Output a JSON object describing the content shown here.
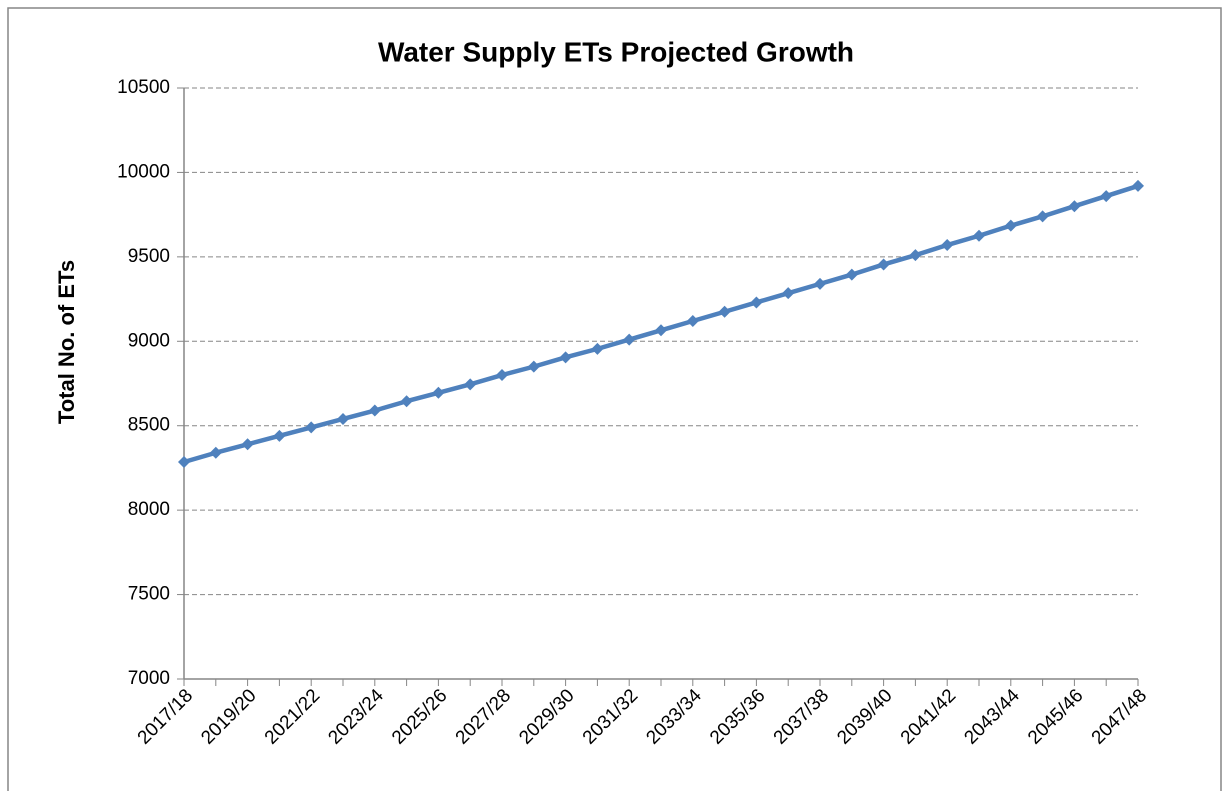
{
  "chart_data": {
    "type": "line",
    "title": "Water Supply ETs Projected Growth",
    "y_label": "Total No. of ETs",
    "categories": [
      "2017/18",
      null,
      "2019/20",
      null,
      "2021/22",
      null,
      "2023/24",
      null,
      "2025/26",
      null,
      "2027/28",
      null,
      "2029/30",
      null,
      "2031/32",
      null,
      "2033/34",
      null,
      "2035/36",
      null,
      "2037/38",
      null,
      "2039/40",
      null,
      "2041/42",
      null,
      "2043/44",
      null,
      "2045/46",
      null,
      "2047/48"
    ],
    "series": [
      {
        "name": "Total No. of ETs",
        "color": "#4f81bd",
        "values": [
          8285,
          8340,
          8390,
          8440,
          8490,
          8540,
          8590,
          8645,
          8695,
          8745,
          8800,
          8850,
          8905,
          8955,
          9010,
          9065,
          9120,
          9175,
          9230,
          9285,
          9340,
          9395,
          9455,
          9510,
          9570,
          9625,
          9685,
          9740,
          9800,
          9860,
          9920
        ]
      }
    ],
    "ylim": [
      7000,
      10500
    ],
    "yticks": [
      7000,
      7500,
      8000,
      8500,
      9000,
      9500,
      10000,
      10500
    ],
    "grid": true
  }
}
